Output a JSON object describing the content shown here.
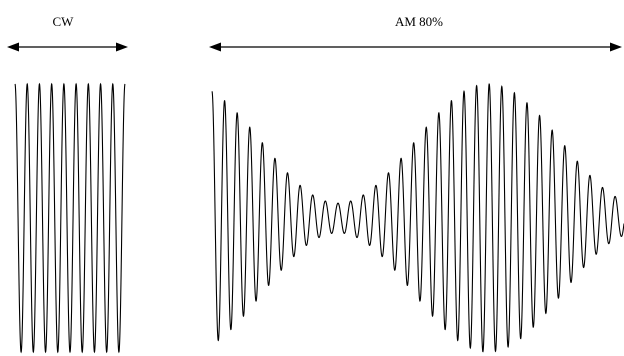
{
  "labels": {
    "cw": "CW",
    "am": "AM 80%"
  },
  "signal": {
    "cw_cycles": 9,
    "am_modulation_depth": 0.8
  },
  "colors": {
    "background": "#ffffff",
    "ink": "#000000"
  }
}
